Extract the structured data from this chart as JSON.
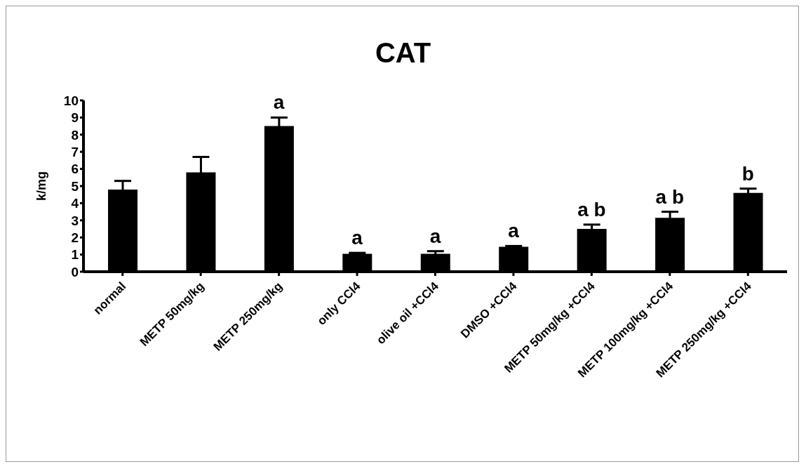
{
  "chart_data": {
    "type": "bar",
    "title": "CAT",
    "ylabel": "k/mg",
    "categories": [
      "normal",
      "METP 50mg/kg",
      "METP 250mg/kg",
      "only CCl4",
      "olive oil +CCl4",
      "DMSO +CCl4",
      "METP 50mg/kg +CCl4",
      "METP 100mg/kg +CCl4",
      "METP 250mg/kg +CCl4"
    ],
    "values": [
      4.8,
      5.8,
      8.5,
      1.05,
      1.05,
      1.45,
      2.5,
      3.15,
      4.6
    ],
    "errors": [
      0.5,
      0.9,
      0.5,
      0.05,
      0.15,
      0.05,
      0.25,
      0.35,
      0.25
    ],
    "color": "#000000",
    "ylim": [
      0,
      10
    ],
    "yticks": [
      0,
      1,
      2,
      3,
      4,
      5,
      6,
      7,
      8,
      9,
      10
    ],
    "grid": false,
    "legend": false,
    "annotations": [
      {
        "text": "a",
        "x": "METP 250mg/kg",
        "y": 9.0
      },
      {
        "text": "a",
        "x": "only CCl4",
        "y": 1.1
      },
      {
        "text": "a",
        "x": "olive oil +CCl4",
        "y": 1.2
      },
      {
        "text": "a",
        "x": "DMSO +CCl4",
        "y": 1.5
      },
      {
        "text": "a b",
        "x": "METP 50mg/kg +CCl4",
        "y": 2.75
      },
      {
        "text": "a b",
        "x": "METP 100mg/kg +CCl4",
        "y": 3.5
      },
      {
        "text": "b",
        "x": "METP 250mg/kg +CCl4",
        "y": 4.85
      }
    ]
  }
}
